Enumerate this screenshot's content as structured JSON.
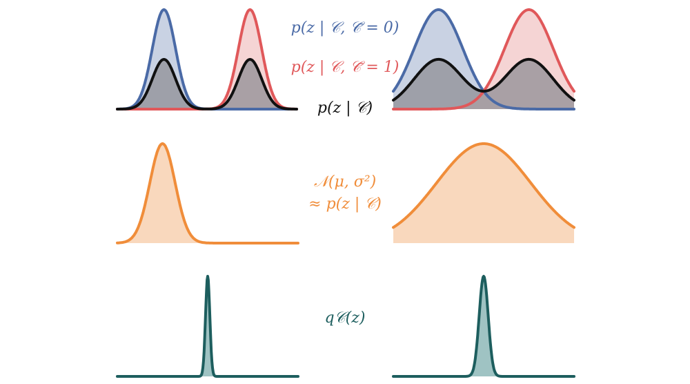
{
  "colors": {
    "blue": "#4a6aa6",
    "blue_fill": "#c3cde0",
    "red": "#e0585a",
    "red_fill": "#f3cccc",
    "black": "#111111",
    "black_fill": "#8f8f95",
    "orange": "#f08d3a",
    "orange_fill": "#f9d8bd",
    "teal": "#1d5e5e",
    "teal_fill": "#9fc3c3"
  },
  "labels": {
    "blue_label": "p(z | 𝒞, 𝒞̄ = 0)",
    "red_label": "p(z | 𝒞, 𝒞̄ = 1)",
    "black_label": "p(z | 𝒞)",
    "normal_line1": "𝒩(μ, σ²)",
    "normal_line2": "≈ p(z | 𝒞)",
    "q_label": "q𝒞(z)"
  },
  "panels": {
    "mixture_left": {
      "components": [
        {
          "name": "p(z | C, Cbar = 0)",
          "mu": 0.26,
          "sigma": 0.065
        },
        {
          "name": "p(z | C, Cbar = 1)",
          "mu": 0.74,
          "sigma": 0.065
        }
      ],
      "mixture_peak_ratio": 0.5
    },
    "mixture_right": {
      "components": [
        {
          "name": "p(z | C, Cbar = 0)",
          "mu": 0.25,
          "sigma": 0.135
        },
        {
          "name": "p(z | C, Cbar = 1)",
          "mu": 0.75,
          "sigma": 0.135
        }
      ],
      "mixture_peak_ratio": 0.5
    },
    "normal_left": {
      "mu": 0.25,
      "sigma": 0.07
    },
    "normal_right": {
      "mu": 0.5,
      "sigma": 0.26
    },
    "q_left": {
      "mu": 0.5,
      "sigma": 0.012
    },
    "q_right": {
      "mu": 0.5,
      "sigma": 0.025
    }
  }
}
